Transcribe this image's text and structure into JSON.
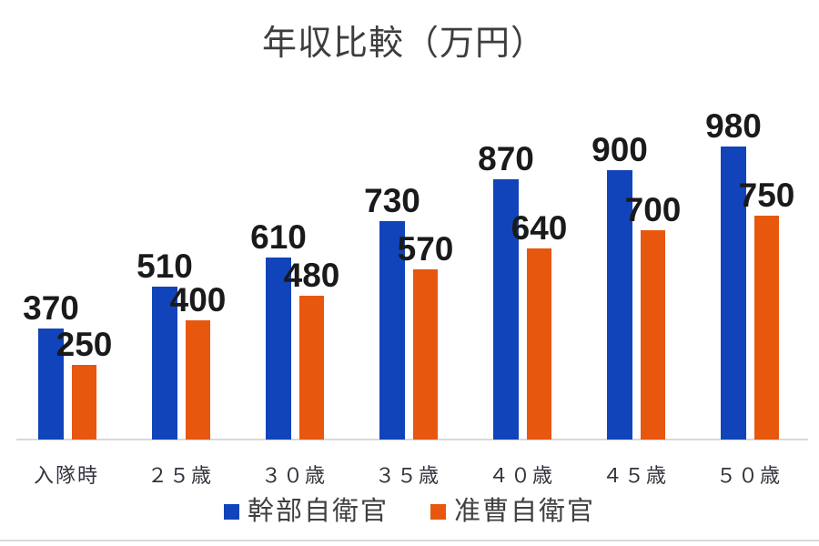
{
  "title": "年収比較（万円）",
  "chart_data": {
    "type": "bar",
    "title": "年収比較（万円）",
    "categories": [
      "入隊時",
      "２５歳",
      "３０歳",
      "３５歳",
      "４０歳",
      "４５歳",
      "５０歳"
    ],
    "series": [
      {
        "name": "幹部自衛官",
        "color": "#1144BB",
        "values": [
          370,
          510,
          610,
          730,
          870,
          900,
          980
        ]
      },
      {
        "name": "准曹自衛官",
        "color": "#E8570E",
        "values": [
          250,
          400,
          480,
          570,
          640,
          700,
          750
        ]
      }
    ],
    "xlabel": "",
    "ylabel": "",
    "ylim": [
      0,
      1050
    ],
    "grid": false,
    "data_labels": true,
    "legend_position": "bottom",
    "axis_line_color": "#d9d9d9",
    "data_label_color": "#1a1a1a",
    "tick_label_color": "#33333d",
    "title_color": "#3d3d3d"
  }
}
